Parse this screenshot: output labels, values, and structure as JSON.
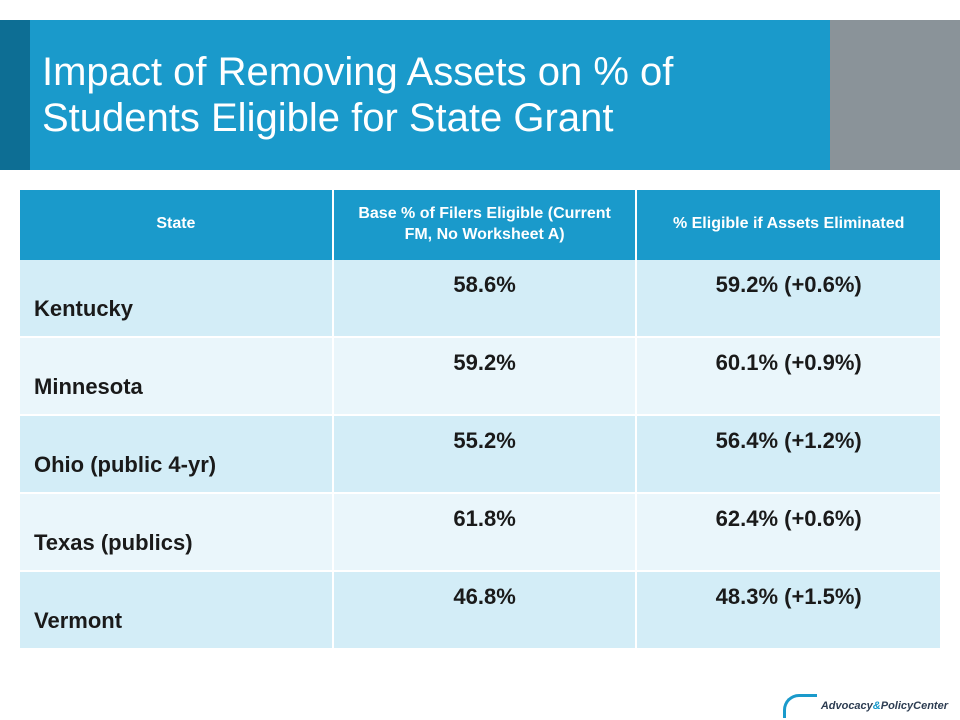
{
  "title": "Impact of Removing Assets on % of Students Eligible for State Grant",
  "colors": {
    "header_bg": "#1a9acb",
    "header_accent": "#0d6e94",
    "header_right": "#8a9399",
    "title_text": "#ffffff",
    "th_bg": "#1a9acb",
    "th_text": "#ffffff",
    "row_odd_bg": "#d3edf7",
    "row_even_bg": "#eaf6fb",
    "cell_text": "#1a1a1a",
    "logo_accent": "#1a9acb",
    "logo_text_dark": "#2d3d52"
  },
  "table": {
    "columns": [
      "State",
      "Base % of Filers Eligible (Current FM, No Worksheet A)",
      "% Eligible if Assets Eliminated"
    ],
    "rows": [
      {
        "state": "Kentucky",
        "base": "58.6%",
        "elim": "59.2% (+0.6%)"
      },
      {
        "state": "Minnesota",
        "base": "59.2%",
        "elim": "60.1% (+0.9%)"
      },
      {
        "state": "Ohio (public 4-yr)",
        "base": "55.2%",
        "elim": "56.4% (+1.2%)"
      },
      {
        "state": "Texas (publics)",
        "base": "61.8%",
        "elim": "62.4% (+0.6%)"
      },
      {
        "state": "Vermont",
        "base": "46.8%",
        "elim": "48.3% (+1.5%)"
      }
    ]
  },
  "logo": {
    "line1_a": "Advocacy",
    "line1_amp": "&",
    "line1_b": "Policy",
    "line2": "Center"
  }
}
